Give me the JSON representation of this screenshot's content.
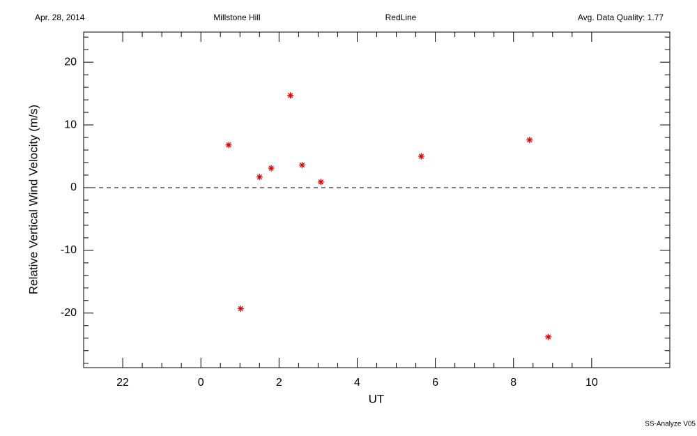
{
  "chart_data": {
    "type": "scatter",
    "title": "RedLine",
    "date": "Apr. 28, 2014",
    "site": "Millstone Hill",
    "quality": "Avg. Data Quality: 1.77",
    "footer": "SS-Analyze V05",
    "x_label": "UT",
    "y_label": "Relative Vertical Wind Velocity (m/s)",
    "xlim": [
      -3,
      12
    ],
    "ylim": [
      -28.7,
      24.8
    ],
    "xticks": [
      {
        "value": -2,
        "label": "22"
      },
      0,
      2,
      4,
      6,
      8,
      10
    ],
    "yticks": [
      -20,
      -10,
      0,
      10,
      20
    ],
    "hline": 0,
    "series": [
      {
        "color": "#e00000",
        "x": [
          0.71,
          1.02,
          1.5,
          1.8,
          2.29,
          2.59,
          3.07,
          5.64,
          8.41,
          8.89
        ],
        "values": [
          6.8,
          -19.3,
          1.7,
          3.1,
          14.7,
          3.6,
          0.9,
          5.0,
          7.6,
          -23.8
        ]
      }
    ]
  }
}
